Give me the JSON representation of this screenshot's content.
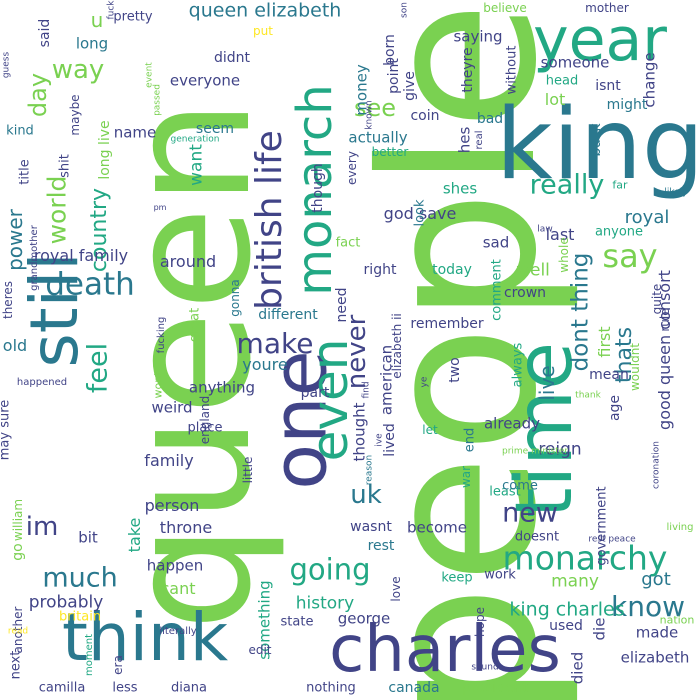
{
  "palette": {
    "lime": "#7ad151",
    "green": "#22a884",
    "teal": "#2a788e",
    "indigo": "#414487",
    "purple": "#440154",
    "yellow": "#fde725",
    "mint": "#5ec962"
  },
  "words": [
    {
      "text": "people",
      "color": "#7ad151"
    },
    {
      "text": "queen",
      "color": "#7ad151"
    },
    {
      "text": "king",
      "color": "#2a788e"
    },
    {
      "text": "year",
      "color": "#22a884"
    },
    {
      "text": "time",
      "color": "#22a884"
    },
    {
      "text": "one",
      "color": "#414487"
    },
    {
      "text": "still",
      "color": "#2a788e"
    },
    {
      "text": "think",
      "color": "#2a788e"
    },
    {
      "text": "charles",
      "color": "#414487"
    },
    {
      "text": "even",
      "color": "#22a884"
    },
    {
      "text": "monarch",
      "color": "#22a884"
    },
    {
      "text": "british life",
      "color": "#414487"
    },
    {
      "text": "queen elizabeth",
      "color": "#2a788e"
    },
    {
      "text": "monarchy",
      "color": "#22a884"
    },
    {
      "text": "going",
      "color": "#22a884"
    },
    {
      "text": "much",
      "color": "#2a788e"
    },
    {
      "text": "death",
      "color": "#2a788e"
    },
    {
      "text": "make",
      "color": "#414487"
    },
    {
      "text": "know",
      "color": "#2a788e"
    },
    {
      "text": "say",
      "color": "#7ad151"
    },
    {
      "text": "world",
      "color": "#7ad151"
    },
    {
      "text": "way",
      "color": "#7ad151"
    },
    {
      "text": "day",
      "color": "#7ad151"
    },
    {
      "text": "country",
      "color": "#22a884"
    },
    {
      "text": "feel",
      "color": "#22a884"
    },
    {
      "text": "power",
      "color": "#2a788e"
    },
    {
      "text": "new",
      "color": "#414487"
    },
    {
      "text": "uk",
      "color": "#2a788e"
    },
    {
      "text": "im",
      "color": "#414487"
    },
    {
      "text": "never",
      "color": "#414487"
    },
    {
      "text": "really",
      "color": "#22a884"
    },
    {
      "text": "live",
      "color": "#2a788e"
    },
    {
      "text": "dont thing",
      "color": "#2a788e"
    },
    {
      "text": "thats",
      "color": "#2a788e"
    },
    {
      "text": "see",
      "color": "#7ad151"
    },
    {
      "text": "king charles",
      "color": "#22a884"
    },
    {
      "text": "royal family",
      "color": "#414487"
    },
    {
      "text": "god save",
      "color": "#414487"
    },
    {
      "text": "royal",
      "color": "#2a788e"
    },
    {
      "text": "good queen consort",
      "color": "#414487"
    },
    {
      "text": "history",
      "color": "#22a884"
    },
    {
      "text": "got",
      "color": "#2a788e"
    },
    {
      "text": "many",
      "color": "#7ad151"
    },
    {
      "text": "probably",
      "color": "#414487"
    },
    {
      "text": "person",
      "color": "#414487"
    },
    {
      "text": "family",
      "color": "#414487"
    },
    {
      "text": "throne",
      "color": "#414487"
    },
    {
      "text": "happen",
      "color": "#414487"
    },
    {
      "text": "cant",
      "color": "#7ad151"
    },
    {
      "text": "something",
      "color": "#22a884"
    },
    {
      "text": "george",
      "color": "#414487"
    },
    {
      "text": "american",
      "color": "#414487"
    },
    {
      "text": "first",
      "color": "#7ad151"
    },
    {
      "text": "made",
      "color": "#414487"
    },
    {
      "text": "die",
      "color": "#414487"
    },
    {
      "text": "died",
      "color": "#414487"
    },
    {
      "text": "elizabeth",
      "color": "#414487"
    },
    {
      "text": "canada",
      "color": "#2a788e"
    },
    {
      "text": "president",
      "color": "#7ad151"
    },
    {
      "text": "nothing",
      "color": "#414487"
    },
    {
      "text": "diana",
      "color": "#414487"
    },
    {
      "text": "less",
      "color": "#414487"
    },
    {
      "text": "camilla",
      "color": "#414487"
    },
    {
      "text": "next",
      "color": "#414487"
    },
    {
      "text": "money",
      "color": "#2a788e"
    },
    {
      "text": "seem",
      "color": "#2a788e"
    },
    {
      "text": "name",
      "color": "#414487"
    },
    {
      "text": "want",
      "color": "#22a884"
    },
    {
      "text": "everyone",
      "color": "#414487"
    },
    {
      "text": "didnt",
      "color": "#414487"
    },
    {
      "text": "around",
      "color": "#414487"
    },
    {
      "text": "different",
      "color": "#2a788e"
    },
    {
      "text": "part",
      "color": "#414487"
    },
    {
      "text": "anything",
      "color": "#414487"
    },
    {
      "text": "weird",
      "color": "#414487"
    },
    {
      "text": "take",
      "color": "#22a884"
    },
    {
      "text": "youre",
      "color": "#2a788e"
    },
    {
      "text": "thought",
      "color": "#414487"
    },
    {
      "text": "reign",
      "color": "#414487"
    },
    {
      "text": "lived",
      "color": "#414487"
    },
    {
      "text": "become",
      "color": "#414487"
    },
    {
      "text": "wasnt",
      "color": "#414487"
    },
    {
      "text": "rest",
      "color": "#2a788e"
    },
    {
      "text": "already",
      "color": "#414487"
    },
    {
      "text": "two",
      "color": "#414487"
    },
    {
      "text": "remember",
      "color": "#414487"
    },
    {
      "text": "need",
      "color": "#414487"
    },
    {
      "text": "last",
      "color": "#414487"
    },
    {
      "text": "though",
      "color": "#414487"
    },
    {
      "text": "actually",
      "color": "#2a788e"
    },
    {
      "text": "point",
      "color": "#414487"
    },
    {
      "text": "coin",
      "color": "#414487"
    },
    {
      "text": "hes",
      "color": "#414487"
    },
    {
      "text": "shes",
      "color": "#22a884"
    },
    {
      "text": "sad",
      "color": "#414487"
    },
    {
      "text": "lot",
      "color": "#7ad151"
    },
    {
      "text": "bad",
      "color": "#2a788e"
    },
    {
      "text": "isnt",
      "color": "#414487"
    },
    {
      "text": "might",
      "color": "#2a788e"
    },
    {
      "text": "someone",
      "color": "#414487"
    },
    {
      "text": "change",
      "color": "#414487"
    },
    {
      "text": "saying",
      "color": "#414487"
    },
    {
      "text": "born",
      "color": "#414487"
    },
    {
      "text": "give",
      "color": "#414487"
    },
    {
      "text": "without",
      "color": "#414487"
    },
    {
      "text": "theyre",
      "color": "#414487"
    },
    {
      "text": "pretty",
      "color": "#414487"
    },
    {
      "text": "believe",
      "color": "#7ad151"
    },
    {
      "text": "mother",
      "color": "#414487"
    },
    {
      "text": "long",
      "color": "#2a788e"
    },
    {
      "text": "said",
      "color": "#414487"
    },
    {
      "text": "u",
      "color": "#7ad151"
    },
    {
      "text": "put",
      "color": "#fde725"
    },
    {
      "text": "head",
      "color": "#22a884"
    },
    {
      "text": "back",
      "color": "#2a788e"
    },
    {
      "text": "mean",
      "color": "#414487"
    },
    {
      "text": "age",
      "color": "#414487"
    },
    {
      "text": "well",
      "color": "#7ad151"
    },
    {
      "text": "crown",
      "color": "#414487"
    },
    {
      "text": "comment",
      "color": "#22a884"
    },
    {
      "text": "today",
      "color": "#22a884"
    },
    {
      "text": "fact",
      "color": "#7ad151"
    },
    {
      "text": "right",
      "color": "#414487"
    },
    {
      "text": "elizabeth ii",
      "color": "#414487"
    },
    {
      "text": "look",
      "color": "#2a788e"
    },
    {
      "text": "better",
      "color": "#22a884"
    },
    {
      "text": "every",
      "color": "#414487"
    },
    {
      "text": "anyone",
      "color": "#22a884"
    },
    {
      "text": "quite",
      "color": "#414487"
    },
    {
      "text": "rule",
      "color": "#414487"
    },
    {
      "text": "wouldnt",
      "color": "#7ad151"
    },
    {
      "text": "always",
      "color": "#22a884"
    },
    {
      "text": "end",
      "color": "#2a788e"
    },
    {
      "text": "war",
      "color": "#22a884"
    },
    {
      "text": "let",
      "color": "#22a884"
    },
    {
      "text": "least",
      "color": "#22a884"
    },
    {
      "text": "come",
      "color": "#2a788e"
    },
    {
      "text": "government",
      "color": "#414487"
    },
    {
      "text": "doesnt",
      "color": "#414487"
    },
    {
      "text": "work",
      "color": "#414487"
    },
    {
      "text": "keep",
      "color": "#22a884"
    },
    {
      "text": "love",
      "color": "#414487"
    },
    {
      "text": "hope",
      "color": "#414487"
    },
    {
      "text": "used",
      "color": "#414487"
    },
    {
      "text": "state",
      "color": "#414487"
    },
    {
      "text": "edit",
      "color": "#414487"
    },
    {
      "text": "era",
      "color": "#414487"
    },
    {
      "text": "little",
      "color": "#414487"
    },
    {
      "text": "great",
      "color": "#7ad151"
    },
    {
      "text": "place",
      "color": "#414487"
    },
    {
      "text": "england",
      "color": "#414487"
    },
    {
      "text": "william",
      "color": "#7ad151"
    },
    {
      "text": "bit",
      "color": "#414487"
    },
    {
      "text": "go",
      "color": "#7ad151"
    },
    {
      "text": "another",
      "color": "#414487"
    },
    {
      "text": "may sure",
      "color": "#414487"
    },
    {
      "text": "theres",
      "color": "#414487"
    },
    {
      "text": "old",
      "color": "#2a788e"
    },
    {
      "text": "title",
      "color": "#414487"
    },
    {
      "text": "long live",
      "color": "#7ad151"
    },
    {
      "text": "kind",
      "color": "#2a788e"
    },
    {
      "text": "shit",
      "color": "#414487"
    },
    {
      "text": "maybe",
      "color": "#414487"
    },
    {
      "text": "britain",
      "color": "#fde725"
    },
    {
      "text": "grandmother",
      "color": "#414487"
    },
    {
      "text": "happened",
      "color": "#414487"
    },
    {
      "text": "generation",
      "color": "#22a884"
    },
    {
      "text": "fucking",
      "color": "#414487"
    },
    {
      "text": "gonna",
      "color": "#2a788e"
    },
    {
      "text": "wont",
      "color": "#7ad151"
    },
    {
      "text": "moment",
      "color": "#22a884"
    },
    {
      "text": "literally",
      "color": "#414487"
    },
    {
      "text": "nation",
      "color": "#7ad151"
    },
    {
      "text": "sound",
      "color": "#414487"
    },
    {
      "text": "prime minister",
      "color": "#7ad151"
    },
    {
      "text": "rest peace",
      "color": "#414487"
    },
    {
      "text": "coronation",
      "color": "#414487"
    },
    {
      "text": "living",
      "color": "#7ad151"
    },
    {
      "text": "likely",
      "color": "#2a788e"
    },
    {
      "text": "thank",
      "color": "#7ad151"
    },
    {
      "text": "far",
      "color": "#22a884"
    },
    {
      "text": "whole",
      "color": "#7ad151"
    },
    {
      "text": "law",
      "color": "#414487"
    },
    {
      "text": "real",
      "color": "#414487"
    },
    {
      "text": "known",
      "color": "#414487"
    },
    {
      "text": "event",
      "color": "#7ad151"
    },
    {
      "text": "passed",
      "color": "#7ad151"
    },
    {
      "text": "guess",
      "color": "#414487"
    },
    {
      "text": "fuck",
      "color": "#414487"
    },
    {
      "text": "son",
      "color": "#414487"
    },
    {
      "text": "ive",
      "color": "#414487"
    },
    {
      "text": "find",
      "color": "#414487"
    },
    {
      "text": "reason",
      "color": "#2a788e"
    },
    {
      "text": "ye",
      "color": "#414487"
    },
    {
      "text": "read",
      "color": "#fde725"
    },
    {
      "text": "pm",
      "color": "#414487"
    }
  ]
}
